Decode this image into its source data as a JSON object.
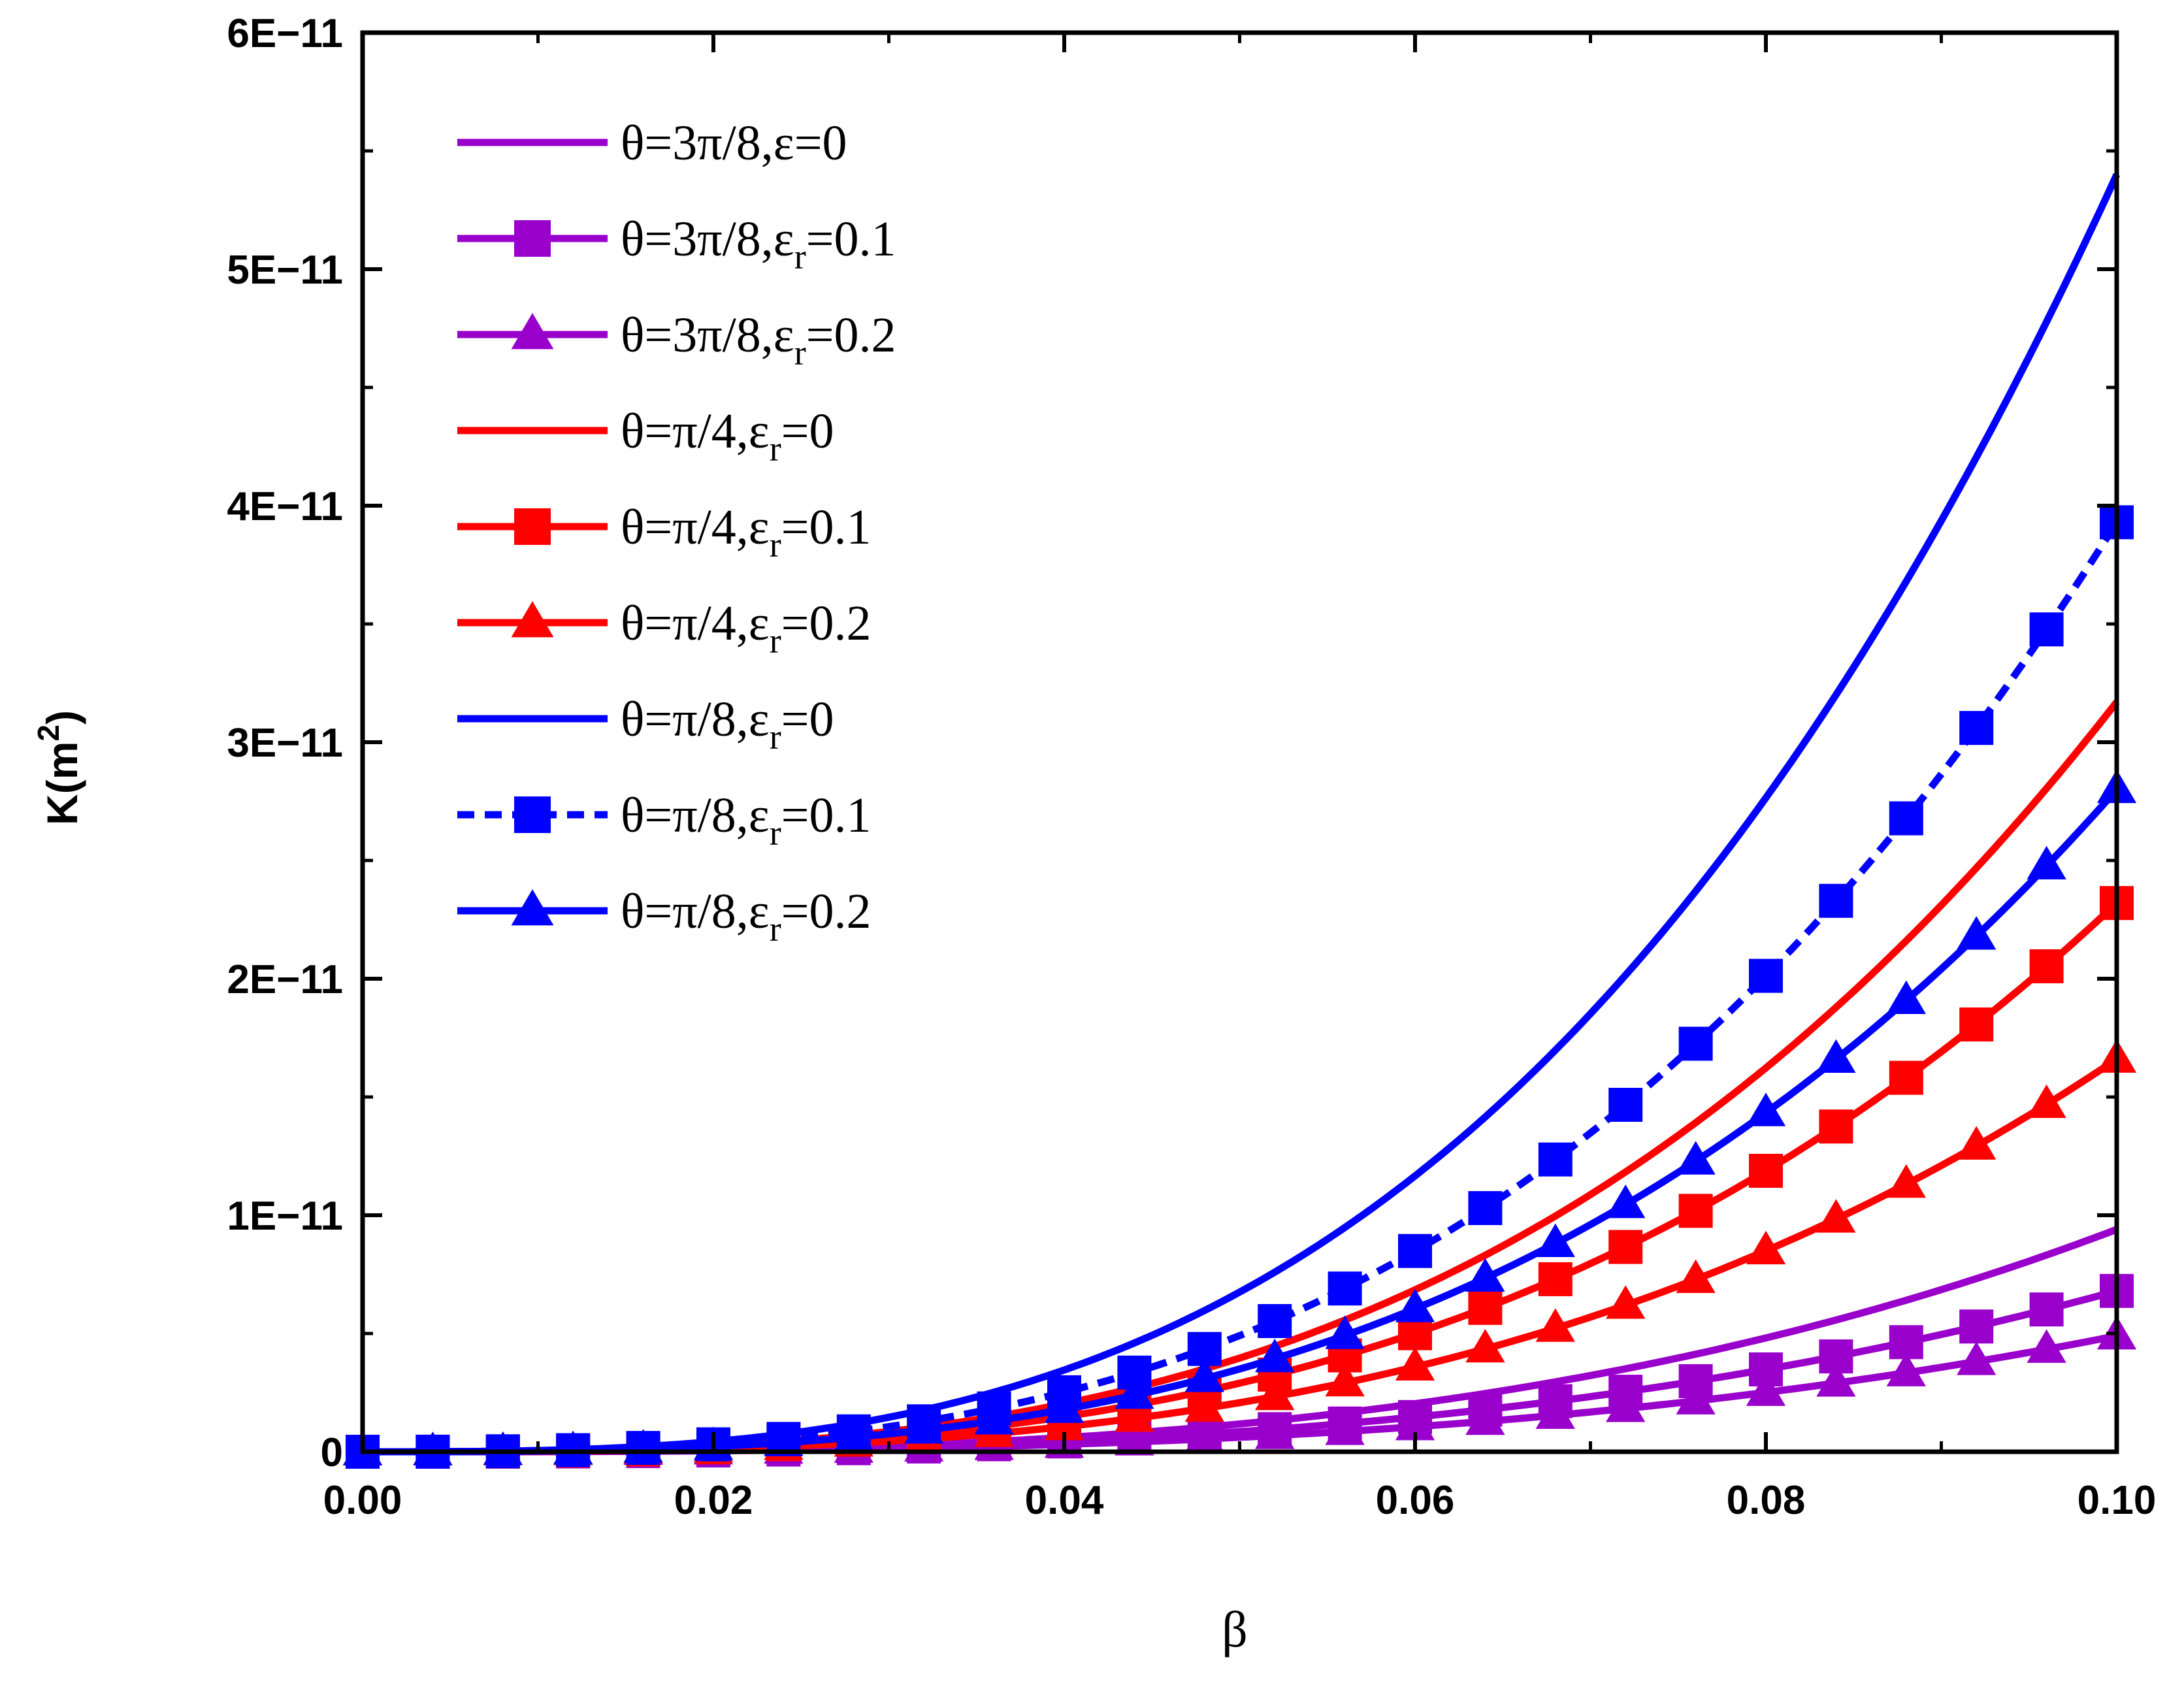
{
  "chart_data": {
    "type": "line",
    "title": "",
    "xlabel": "β",
    "ylabel": "K(m²)",
    "ylabel_base": "K(m",
    "ylabel_sup": "2",
    "ylabel_close": ")",
    "xlim": [
      0.0,
      0.1
    ],
    "ylim": [
      0,
      6e-11
    ],
    "grid": false,
    "legend_position": "top-left",
    "x_ticks": [
      {
        "value": 0.0,
        "label": "0.00"
      },
      {
        "value": 0.02,
        "label": "0.02"
      },
      {
        "value": 0.04,
        "label": "0.04"
      },
      {
        "value": 0.06,
        "label": "0.06"
      },
      {
        "value": 0.08,
        "label": "0.08"
      },
      {
        "value": 0.1,
        "label": "0.10"
      }
    ],
    "y_ticks": [
      {
        "value": 0,
        "label": "0"
      },
      {
        "value": 1e-11,
        "label": "1E−11"
      },
      {
        "value": 2e-11,
        "label": "2E−11"
      },
      {
        "value": 3e-11,
        "label": "3E−11"
      },
      {
        "value": 4e-11,
        "label": "4E−11"
      },
      {
        "value": 5e-11,
        "label": "5E−11"
      },
      {
        "value": 6e-11,
        "label": "6E−11"
      }
    ],
    "model": "K = coefficient × β^exponent",
    "series": [
      {
        "name": "θ=3π/8,ε=0",
        "theta": "θ=3π/8,",
        "eps": "ε",
        "sub": "",
        "val": "=0",
        "color": "#9900cc",
        "marker": "none",
        "dashed": false,
        "coefficient": 9.4e-09,
        "exponent": 3
      },
      {
        "name": "θ=3π/8,εr=0.1",
        "theta": "θ=3π/8,",
        "eps": "ε",
        "sub": "r",
        "val": "=0.1",
        "color": "#9900cc",
        "marker": "square",
        "dashed": false,
        "coefficient": 6.8e-09,
        "exponent": 3
      },
      {
        "name": "θ=3π/8,εr=0.2",
        "theta": "θ=3π/8,",
        "eps": "ε",
        "sub": "r",
        "val": "=0.2",
        "color": "#9900cc",
        "marker": "triangle",
        "dashed": false,
        "coefficient": 4.9e-09,
        "exponent": 3
      },
      {
        "name": "θ=π/4,εr=0",
        "theta": "θ=π/4,",
        "eps": "ε",
        "sub": "r",
        "val": "=0",
        "color": "#ff0000",
        "marker": "none",
        "dashed": false,
        "coefficient": 3.17e-08,
        "exponent": 3
      },
      {
        "name": "θ=π/4,εr=0.1",
        "theta": "θ=π/4,",
        "eps": "ε",
        "sub": "r",
        "val": "=0.1",
        "color": "#ff0000",
        "marker": "square",
        "dashed": false,
        "coefficient": 2.32e-08,
        "exponent": 3
      },
      {
        "name": "θ=π/4,εr=0.2",
        "theta": "θ=π/4,",
        "eps": "ε",
        "sub": "r",
        "val": "=0.2",
        "color": "#ff0000",
        "marker": "triangle",
        "dashed": false,
        "coefficient": 1.66e-08,
        "exponent": 3
      },
      {
        "name": "θ=π/8,εr=0",
        "theta": "θ=π/8,",
        "eps": "ε",
        "sub": "r",
        "val": "=0",
        "color": "#0000ff",
        "marker": "none",
        "dashed": false,
        "coefficient": 5.4e-08,
        "exponent": 3
      },
      {
        "name": "θ=π/8,εr=0.1",
        "theta": "θ=π/8,",
        "eps": "ε",
        "sub": "r",
        "val": "=0.1",
        "color": "#0000ff",
        "marker": "square",
        "dashed": true,
        "coefficient": 3.93e-08,
        "exponent": 3
      },
      {
        "name": "θ=π/8,εr=0.2",
        "theta": "θ=π/8,",
        "eps": "ε",
        "sub": "r",
        "val": "=0.2",
        "color": "#0000ff",
        "marker": "triangle",
        "dashed": false,
        "coefficient": 2.8e-08,
        "exponent": 3
      }
    ],
    "marker_x": [
      0.0,
      0.004,
      0.008,
      0.012,
      0.016,
      0.02,
      0.024,
      0.028,
      0.032,
      0.036,
      0.04,
      0.044,
      0.048,
      0.052,
      0.056,
      0.06,
      0.064,
      0.068,
      0.072,
      0.076,
      0.08,
      0.084,
      0.088,
      0.092,
      0.096,
      0.1
    ]
  }
}
